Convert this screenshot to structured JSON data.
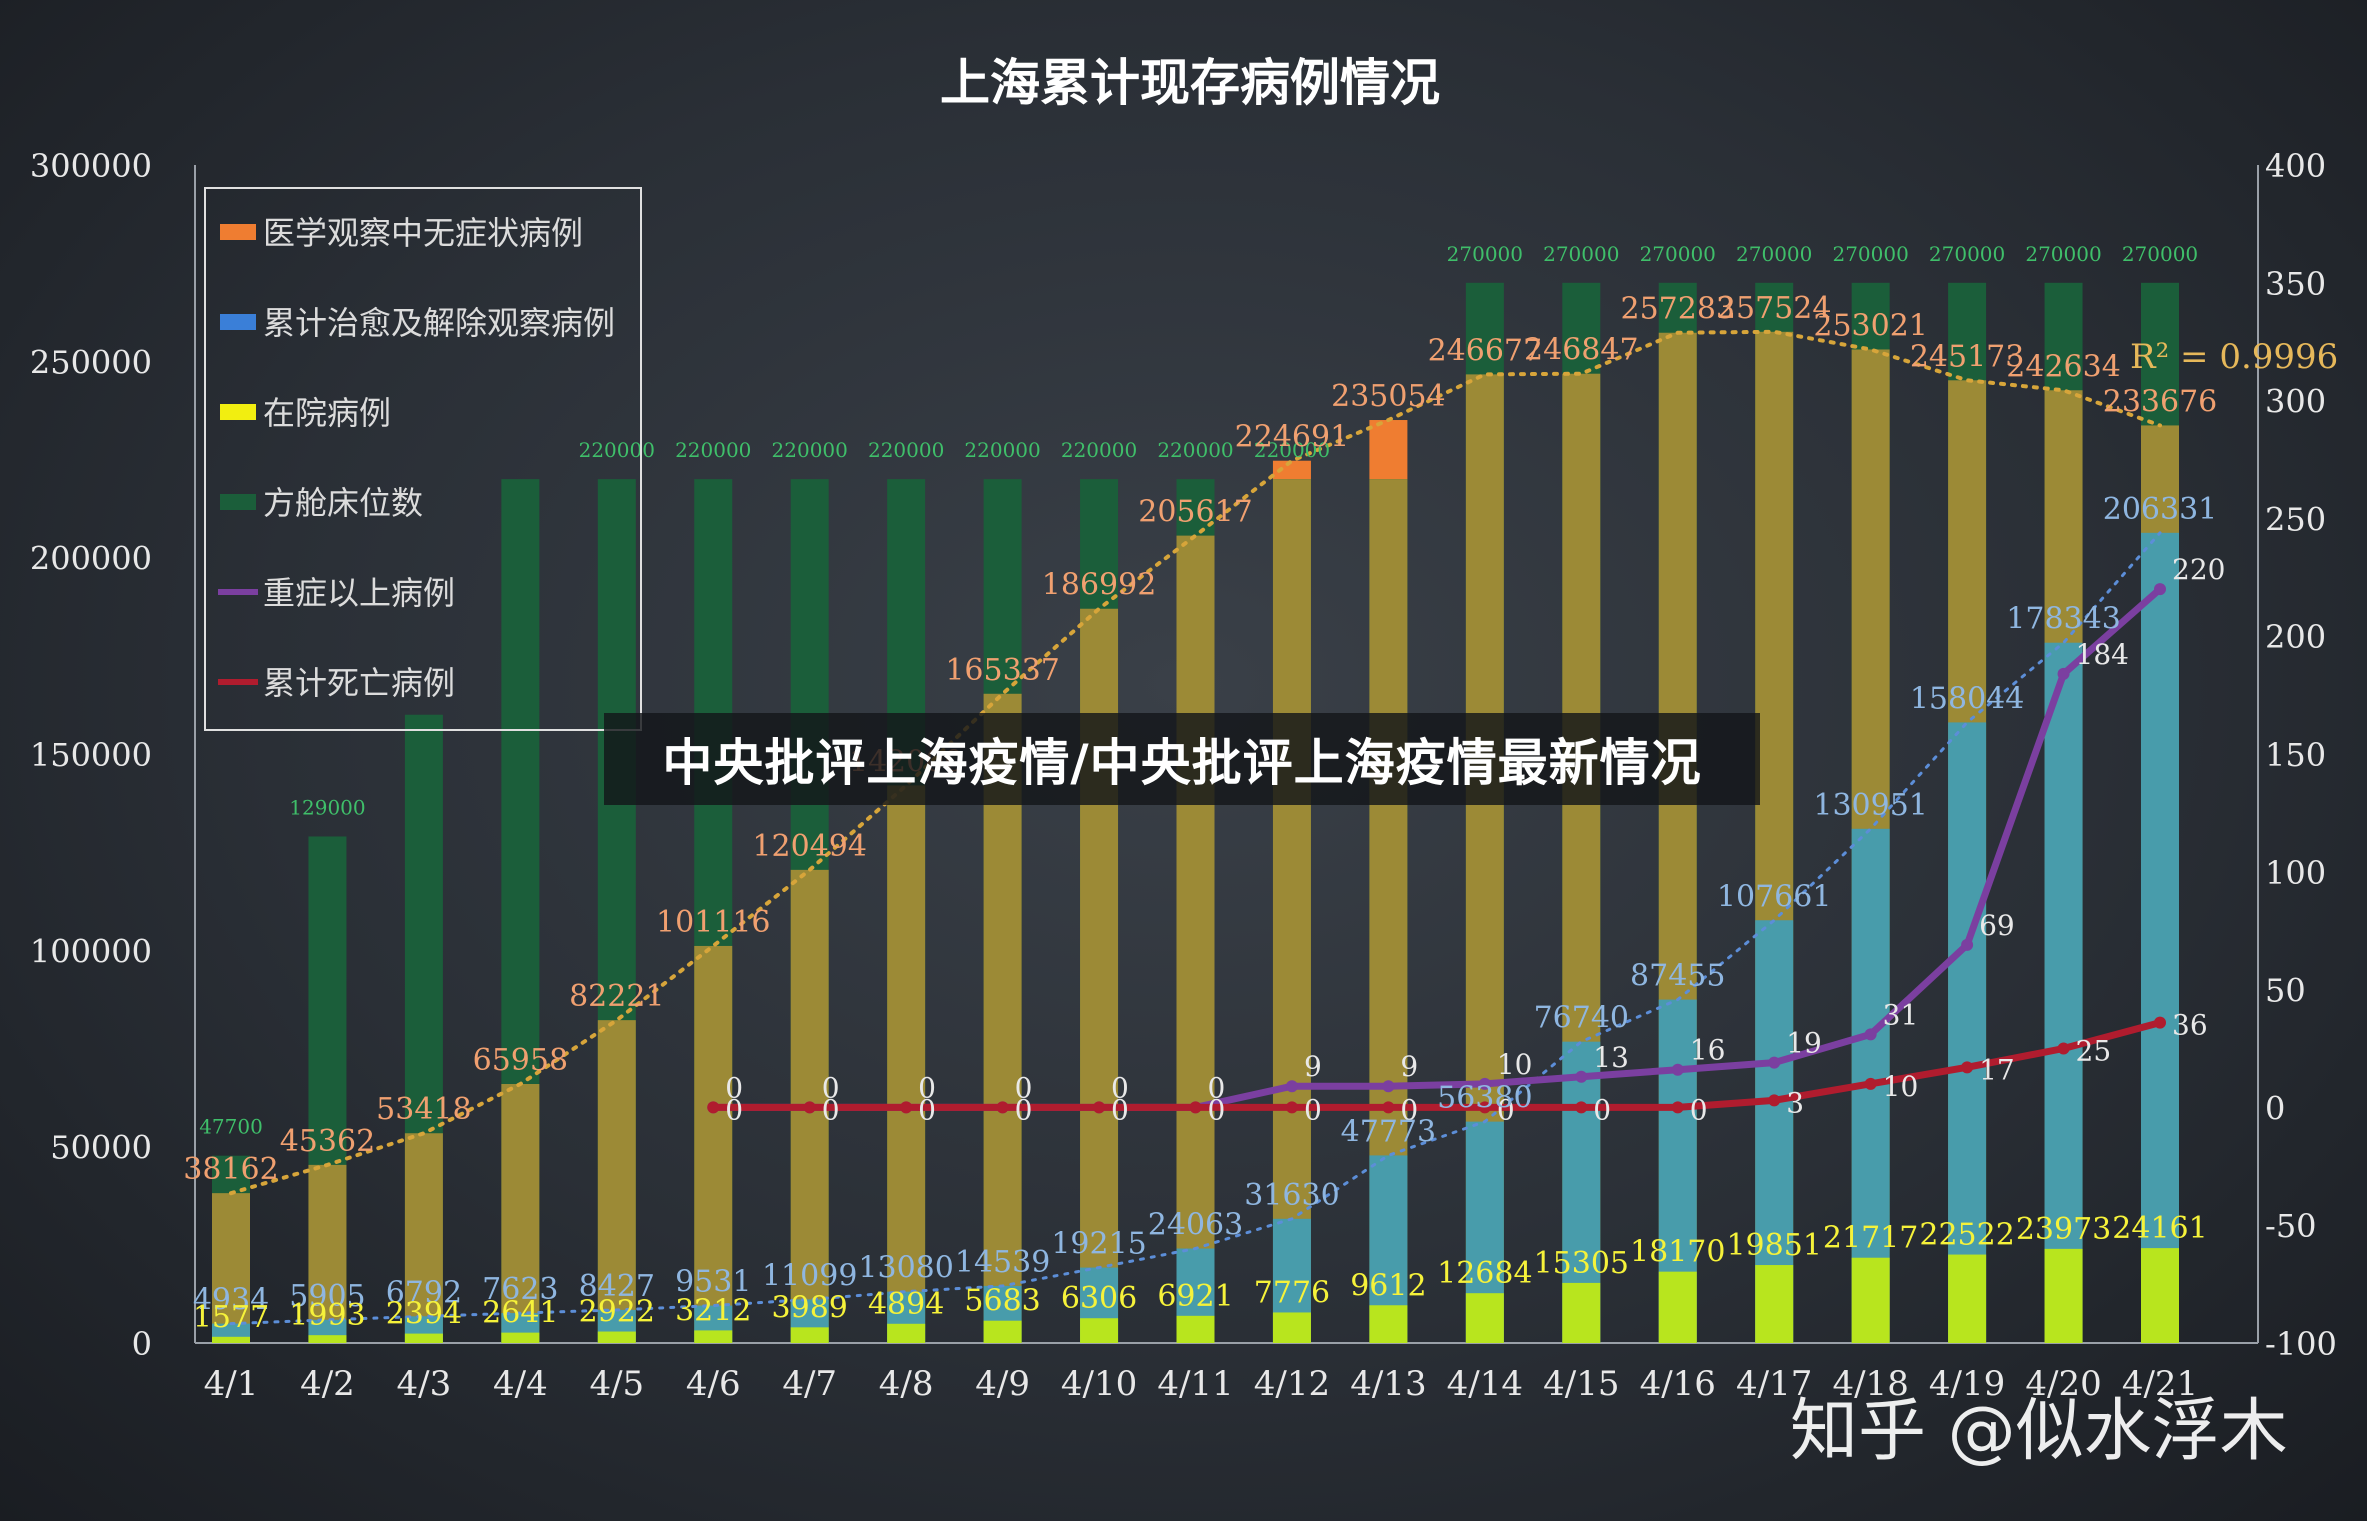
{
  "banner": {
    "text": "中央批评上海疫情/中央批评上海疫情最新情况"
  },
  "watermark": {
    "text": "知乎 @似水浮木"
  },
  "chart_data": {
    "type": "bar",
    "title": "上海累计现存病例情况",
    "categories": [
      "4/1",
      "4/2",
      "4/3",
      "4/4",
      "4/5",
      "4/6",
      "4/7",
      "4/8",
      "4/9",
      "4/10",
      "4/11",
      "4/12",
      "4/13",
      "4/14",
      "4/15",
      "4/16",
      "4/17",
      "4/18",
      "4/19",
      "4/20",
      "4/21"
    ],
    "y_left": {
      "min": 0,
      "max": 300000,
      "ticks": [
        0,
        50000,
        100000,
        150000,
        200000,
        250000,
        300000
      ]
    },
    "y_right": {
      "min": -100,
      "max": 400,
      "ticks": [
        -100,
        -50,
        0,
        50,
        100,
        150,
        200,
        250,
        300,
        350,
        400
      ]
    },
    "grid": false,
    "legend_position": "top-left",
    "series": [
      {
        "name": "医学观察中无症状病例",
        "axis": "left",
        "kind": "bar",
        "color": "#ef7d31",
        "values": [
          38162,
          45362,
          53418,
          65958,
          82221,
          101116,
          120494,
          142000,
          165337,
          186992,
          205617,
          224691,
          235054,
          246677,
          246847,
          257283,
          257524,
          253021,
          245173,
          242634,
          233676
        ]
      },
      {
        "name": "累计治愈及解除观察病例",
        "axis": "left",
        "kind": "bar",
        "color": "#3a9fbf",
        "values": [
          4934,
          5905,
          6792,
          7623,
          8427,
          9531,
          11099,
          13080,
          14539,
          19215,
          24063,
          31630,
          47773,
          56380,
          76740,
          87455,
          107661,
          130951,
          158044,
          178343,
          206331
        ]
      },
      {
        "name": "在院病例",
        "axis": "left",
        "kind": "bar",
        "color": "#b8e51e",
        "values": [
          1577,
          1993,
          2394,
          2641,
          2922,
          3212,
          3989,
          4894,
          5683,
          6306,
          6921,
          7776,
          9612,
          12684,
          15305,
          18170,
          19851,
          21717,
          22522,
          23973,
          24161
        ]
      },
      {
        "name": "方舱床位数",
        "axis": "left",
        "kind": "bar",
        "color": "#1b5e3a",
        "values": [
          47700,
          129000,
          160000,
          220000,
          220000,
          220000,
          220000,
          220000,
          220000,
          220000,
          220000,
          220000,
          220000,
          270000,
          270000,
          270000,
          270000,
          270000,
          270000,
          270000,
          270000
        ]
      },
      {
        "name": "重症以上病例",
        "axis": "right",
        "kind": "line",
        "color": "#7b3fa0",
        "values": [
          null,
          null,
          null,
          null,
          null,
          0,
          0,
          0,
          0,
          0,
          0,
          9,
          9,
          10,
          13,
          16,
          19,
          31,
          69,
          184,
          220
        ]
      },
      {
        "name": "累计死亡病例",
        "axis": "right",
        "kind": "line",
        "color": "#b01c2e",
        "values": [
          null,
          null,
          null,
          null,
          null,
          0,
          0,
          0,
          0,
          0,
          0,
          0,
          0,
          0,
          0,
          0,
          3,
          10,
          17,
          25,
          36
        ]
      }
    ],
    "bed_labels": [
      "47700",
      "129000",
      "",
      "",
      "220000",
      "220000",
      "220000",
      "220000",
      "220000",
      "220000",
      "220000",
      "220000",
      "",
      "270000",
      "270000",
      "270000",
      "270000",
      "270000",
      "270000",
      "270000",
      "270000"
    ],
    "annotations": [
      "R² = 0.9996"
    ]
  }
}
